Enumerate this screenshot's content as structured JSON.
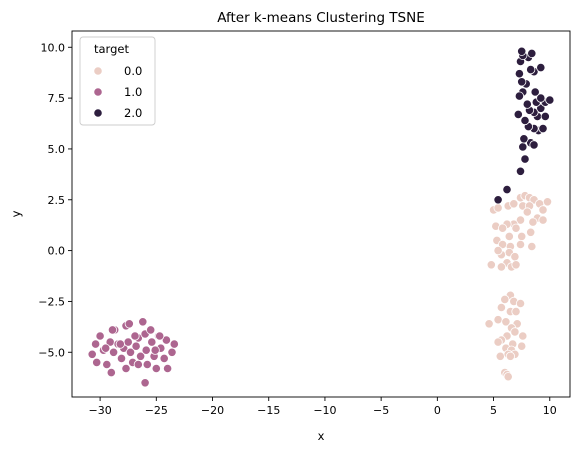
{
  "chart_data": {
    "type": "scatter",
    "title": "After k-means Clustering TSNE",
    "xlabel": "x",
    "ylabel": "y",
    "xlim": [
      -32.5,
      11.8
    ],
    "ylim": [
      -7.2,
      10.8
    ],
    "xticks": [
      -30,
      -25,
      -20,
      -15,
      -10,
      -5,
      0,
      5,
      10
    ],
    "yticks": [
      -5.0,
      -2.5,
      0.0,
      2.5,
      5.0,
      7.5,
      10.0
    ],
    "xtick_labels": [
      "−30",
      "−25",
      "−20",
      "−15",
      "−10",
      "−5",
      "0",
      "5",
      "10"
    ],
    "ytick_labels": [
      "−5.0",
      "−2.5",
      "0.0",
      "2.5",
      "5.0",
      "7.5",
      "10.0"
    ],
    "grid": false,
    "legend": {
      "title": "target",
      "placement": "top-left",
      "entries": [
        "0.0",
        "1.0",
        "2.0"
      ]
    },
    "series": [
      {
        "name": "0.0",
        "color": "#ebcdc4",
        "points": [
          [
            5.0,
            2.0
          ],
          [
            5.4,
            2.1
          ],
          [
            6.3,
            2.2
          ],
          [
            6.8,
            2.3
          ],
          [
            7.4,
            2.6
          ],
          [
            7.8,
            2.7
          ],
          [
            8.2,
            2.6
          ],
          [
            8.6,
            2.5
          ],
          [
            7.6,
            2.2
          ],
          [
            8.2,
            2.2
          ],
          [
            9.1,
            2.3
          ],
          [
            9.8,
            2.4
          ],
          [
            9.4,
            2.0
          ],
          [
            8.0,
            1.9
          ],
          [
            8.9,
            1.6
          ],
          [
            9.4,
            1.5
          ],
          [
            8.5,
            1.4
          ],
          [
            7.4,
            1.5
          ],
          [
            6.8,
            1.3
          ],
          [
            6.2,
            1.3
          ],
          [
            5.2,
            1.2
          ],
          [
            5.8,
            1.1
          ],
          [
            7.0,
            1.1
          ],
          [
            8.3,
            0.9
          ],
          [
            7.5,
            0.7
          ],
          [
            6.4,
            0.7
          ],
          [
            5.3,
            0.5
          ],
          [
            5.8,
            0.3
          ],
          [
            6.5,
            0.2
          ],
          [
            7.4,
            0.3
          ],
          [
            8.4,
            0.2
          ],
          [
            6.4,
            -0.1
          ],
          [
            5.7,
            -0.2
          ],
          [
            5.4,
            0.0
          ],
          [
            6.9,
            -0.3
          ],
          [
            6.2,
            -0.6
          ],
          [
            5.7,
            -0.8
          ],
          [
            6.6,
            -0.8
          ],
          [
            7.0,
            -0.7
          ],
          [
            4.8,
            -0.7
          ],
          [
            6.5,
            -2.2
          ],
          [
            6.0,
            -2.4
          ],
          [
            6.8,
            -2.5
          ],
          [
            7.4,
            -2.6
          ],
          [
            5.7,
            -2.8
          ],
          [
            6.5,
            -3.0
          ],
          [
            7.0,
            -3.0
          ],
          [
            5.4,
            -3.4
          ],
          [
            6.1,
            -3.5
          ],
          [
            4.6,
            -3.6
          ],
          [
            7.1,
            -3.6
          ],
          [
            6.6,
            -3.8
          ],
          [
            6.9,
            -4.0
          ],
          [
            6.2,
            -4.2
          ],
          [
            7.6,
            -4.2
          ],
          [
            5.7,
            -4.4
          ],
          [
            5.4,
            -4.5
          ],
          [
            6.7,
            -4.6
          ],
          [
            7.5,
            -4.7
          ],
          [
            6.1,
            -4.8
          ],
          [
            6.6,
            -4.9
          ],
          [
            6.9,
            -5.1
          ],
          [
            5.6,
            -5.2
          ],
          [
            6.3,
            -5.1
          ],
          [
            6.5,
            -5.2
          ],
          [
            6.0,
            -6.0
          ],
          [
            6.2,
            -6.1
          ],
          [
            6.3,
            -6.2
          ]
        ]
      },
      {
        "name": "1.0",
        "color": "#ad6690",
        "points": [
          [
            -30.7,
            -5.1
          ],
          [
            -30.4,
            -4.6
          ],
          [
            -30.0,
            -4.2
          ],
          [
            -30.3,
            -5.5
          ],
          [
            -29.7,
            -4.9
          ],
          [
            -29.4,
            -5.6
          ],
          [
            -29.0,
            -6.0
          ],
          [
            -29.1,
            -4.5
          ],
          [
            -28.8,
            -5.0
          ],
          [
            -28.7,
            -3.9
          ],
          [
            -28.4,
            -4.6
          ],
          [
            -28.1,
            -5.3
          ],
          [
            -27.9,
            -4.8
          ],
          [
            -27.7,
            -3.7
          ],
          [
            -27.4,
            -3.6
          ],
          [
            -27.5,
            -4.5
          ],
          [
            -27.3,
            -5.0
          ],
          [
            -27.1,
            -5.5
          ],
          [
            -26.8,
            -4.7
          ],
          [
            -26.6,
            -4.3
          ],
          [
            -26.4,
            -5.2
          ],
          [
            -26.2,
            -3.5
          ],
          [
            -26.0,
            -4.1
          ],
          [
            -25.9,
            -4.9
          ],
          [
            -25.8,
            -5.6
          ],
          [
            -25.5,
            -3.9
          ],
          [
            -25.4,
            -4.5
          ],
          [
            -25.2,
            -5.2
          ],
          [
            -25.0,
            -5.8
          ],
          [
            -24.8,
            -4.2
          ],
          [
            -24.6,
            -4.8
          ],
          [
            -24.3,
            -5.3
          ],
          [
            -24.1,
            -4.4
          ],
          [
            -24.0,
            -5.8
          ],
          [
            -23.6,
            -5.0
          ],
          [
            -23.4,
            -4.6
          ],
          [
            -28.9,
            -3.9
          ],
          [
            -27.7,
            -5.8
          ],
          [
            -26.0,
            -6.5
          ],
          [
            -26.6,
            -5.6
          ],
          [
            -29.5,
            -4.8
          ],
          [
            -28.2,
            -4.6
          ],
          [
            -25.1,
            -4.9
          ],
          [
            -24.7,
            -4.2
          ],
          [
            -26.9,
            -4.2
          ]
        ]
      },
      {
        "name": "2.0",
        "color": "#2d1e3e",
        "points": [
          [
            5.4,
            2.5
          ],
          [
            6.2,
            3.0
          ],
          [
            7.4,
            3.9
          ],
          [
            7.8,
            4.5
          ],
          [
            7.6,
            5.1
          ],
          [
            8.3,
            5.3
          ],
          [
            8.6,
            5.2
          ],
          [
            7.7,
            5.5
          ],
          [
            9.0,
            5.9
          ],
          [
            9.4,
            6.0
          ],
          [
            8.6,
            6.0
          ],
          [
            8.1,
            6.1
          ],
          [
            7.8,
            6.4
          ],
          [
            8.9,
            6.6
          ],
          [
            9.6,
            6.6
          ],
          [
            8.6,
            6.8
          ],
          [
            8.2,
            6.9
          ],
          [
            9.2,
            7.0
          ],
          [
            8.0,
            7.2
          ],
          [
            8.8,
            7.3
          ],
          [
            9.6,
            7.3
          ],
          [
            10.0,
            7.4
          ],
          [
            9.2,
            7.5
          ],
          [
            8.7,
            7.8
          ],
          [
            7.6,
            7.8
          ],
          [
            7.2,
            6.7
          ],
          [
            7.3,
            7.6
          ],
          [
            7.9,
            8.2
          ],
          [
            7.5,
            8.3
          ],
          [
            8.6,
            8.8
          ],
          [
            7.3,
            8.7
          ],
          [
            8.3,
            8.9
          ],
          [
            9.2,
            9.0
          ],
          [
            7.4,
            9.3
          ],
          [
            8.1,
            9.5
          ],
          [
            8.4,
            9.7
          ],
          [
            7.6,
            9.6
          ],
          [
            7.5,
            9.8
          ]
        ]
      }
    ]
  }
}
